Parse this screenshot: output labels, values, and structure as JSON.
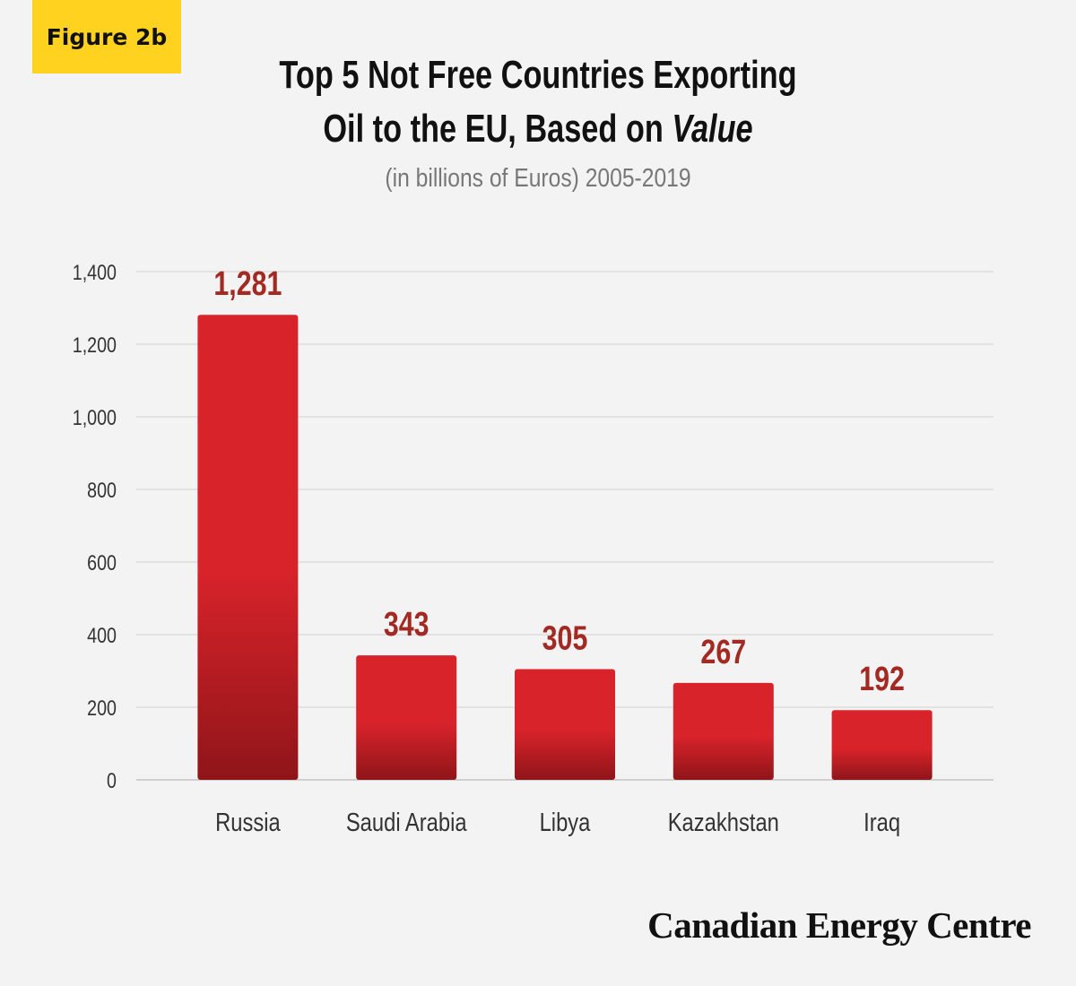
{
  "figure_label": "Figure 2b",
  "title_line1": "Top 5 Not Free Countries Exporting",
  "title_line2_prefix": "Oil to the EU, Based on ",
  "title_line2_emphasis": "Value",
  "subtitle": "(in billions of Euros) 2005-2019",
  "brand": "Canadian Energy Centre",
  "colors": {
    "bar_top": "#d8232a",
    "bar_bottom": "#8f1519",
    "value_label": "#a32a22",
    "badge": "#ffd21f",
    "grid": "#dcdcdc",
    "background": "#f3f3f3"
  },
  "chart_data": {
    "type": "bar",
    "categories": [
      "Russia",
      "Saudi Arabia",
      "Libya",
      "Kazakhstan",
      "Iraq"
    ],
    "values": [
      1281,
      343,
      305,
      267,
      192
    ],
    "value_labels": [
      "1,281",
      "343",
      "305",
      "267",
      "192"
    ],
    "title": "Top 5 Not Free Countries Exporting Oil to the EU, Based on Value",
    "subtitle": "(in billions of Euros) 2005-2019",
    "xlabel": "",
    "ylabel": "",
    "ylim": [
      0,
      1400
    ],
    "yticks": [
      0,
      200,
      400,
      600,
      800,
      1000,
      1200,
      1400
    ],
    "ytick_labels": [
      "0",
      "200",
      "400",
      "600",
      "800",
      "1,000",
      "1,200",
      "1,400"
    ],
    "grid": true,
    "legend": "none"
  }
}
